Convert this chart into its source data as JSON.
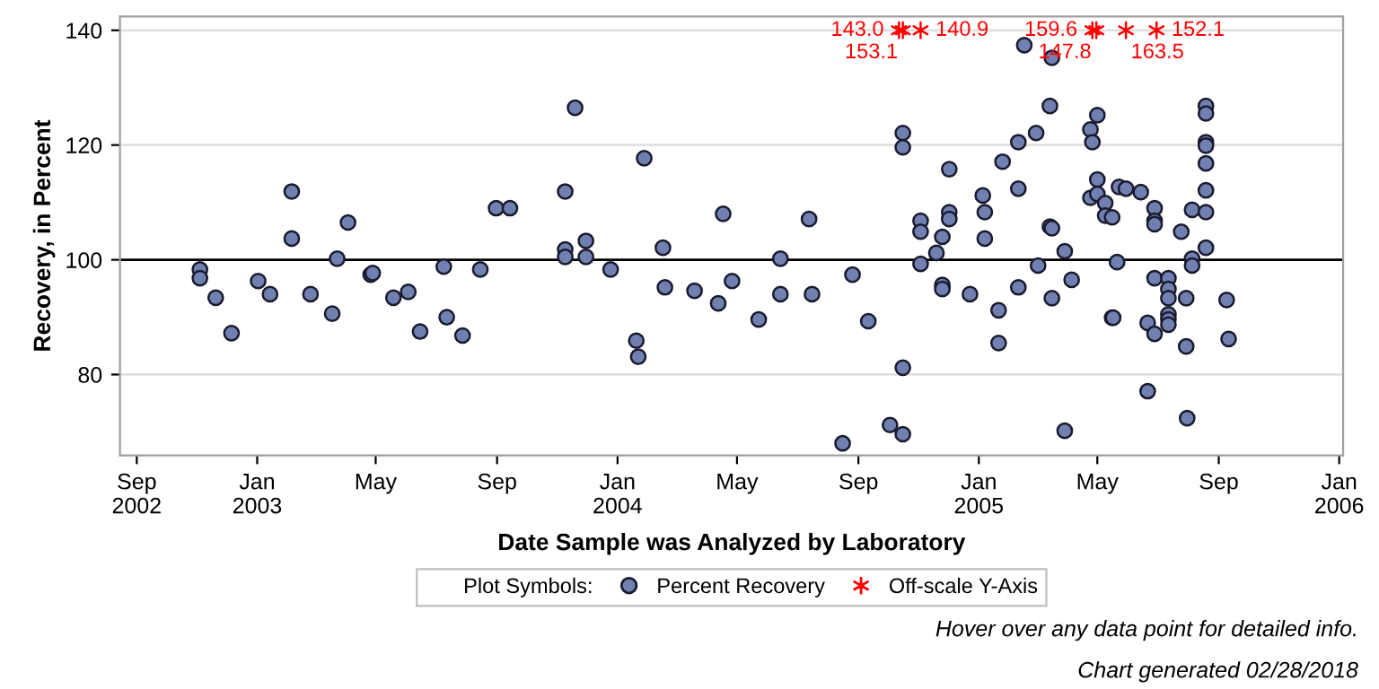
{
  "chart_data": {
    "type": "scatter",
    "xlabel": "Date Sample was Analyzed by Laboratory",
    "ylabel": "Recovery, in Percent",
    "legend_title": "Plot Symbols:",
    "xlim": [
      "2002-08-15",
      "2006-01-05"
    ],
    "ylim": [
      65.9,
      142.4
    ],
    "yticks": [
      80,
      100,
      120,
      140
    ],
    "xticks": [
      {
        "value": "2002-09-01",
        "label": "Sep\n2002"
      },
      {
        "value": "2003-01-01",
        "label": "Jan\n2003"
      },
      {
        "value": "2003-05-01",
        "label": "May"
      },
      {
        "value": "2003-09-01",
        "label": "Sep"
      },
      {
        "value": "2004-01-01",
        "label": "Jan\n2004"
      },
      {
        "value": "2004-05-01",
        "label": "May"
      },
      {
        "value": "2004-09-01",
        "label": "Sep"
      },
      {
        "value": "2005-01-01",
        "label": "Jan\n2005"
      },
      {
        "value": "2005-05-01",
        "label": "May"
      },
      {
        "value": "2005-09-01",
        "label": "Sep"
      },
      {
        "value": "2006-01-01",
        "label": "Jan\n2006"
      }
    ],
    "grid": "y",
    "legend": "bottom",
    "ref_lines": [
      {
        "axis": "y",
        "value": 100,
        "label": null,
        "color": "#000000"
      }
    ],
    "series": [
      {
        "name": "Percent Recovery",
        "color": "#7080b0",
        "marker": "circle",
        "x": [
          "2002-11-04",
          "2002-11-04",
          "2002-11-20",
          "2002-12-06",
          "2003-01-02",
          "2003-01-14",
          "2003-02-05",
          "2003-02-05",
          "2003-02-24",
          "2003-03-18",
          "2003-03-23",
          "2003-04-03",
          "2003-04-26",
          "2003-04-28",
          "2003-05-19",
          "2003-06-03",
          "2003-06-15",
          "2003-07-09",
          "2003-07-12",
          "2003-07-28",
          "2003-08-15",
          "2003-08-31",
          "2003-09-14",
          "2003-11-09",
          "2003-11-09",
          "2003-11-09",
          "2003-11-19",
          "2003-11-30",
          "2003-11-30",
          "2003-12-25",
          "2004-01-20",
          "2004-01-22",
          "2004-01-28",
          "2004-02-16",
          "2004-02-18",
          "2004-03-19",
          "2004-04-12",
          "2004-04-17",
          "2004-04-26",
          "2004-05-23",
          "2004-06-14",
          "2004-06-14",
          "2004-07-13",
          "2004-07-16",
          "2004-08-16",
          "2004-08-26",
          "2004-09-11",
          "2004-10-03",
          "2004-10-16",
          "2004-10-16",
          "2004-10-16",
          "2004-10-16",
          "2004-11-03",
          "2004-11-03",
          "2004-11-03",
          "2004-11-19",
          "2004-11-25",
          "2004-11-25",
          "2004-11-25",
          "2004-12-02",
          "2004-12-02",
          "2004-12-02",
          "2004-12-23",
          "2005-01-05",
          "2005-01-07",
          "2005-01-07",
          "2005-01-21",
          "2005-01-21",
          "2005-01-25",
          "2005-02-10",
          "2005-02-10",
          "2005-02-10",
          "2005-02-16",
          "2005-02-28",
          "2005-03-02",
          "2005-03-14",
          "2005-03-16",
          "2005-03-14",
          "2005-03-16",
          "2005-03-16",
          "2005-03-29",
          "2005-03-29",
          "2005-04-05",
          "2005-04-24",
          "2005-04-26",
          "2005-04-24",
          "2005-05-01",
          "2005-05-01",
          "2005-05-01",
          "2005-05-09",
          "2005-05-09",
          "2005-05-16",
          "2005-05-16",
          "2005-05-17",
          "2005-05-21",
          "2005-05-23",
          "2005-05-30",
          "2005-06-14",
          "2005-06-21",
          "2005-06-21",
          "2005-06-28",
          "2005-06-28",
          "2005-06-28",
          "2005-06-28",
          "2005-06-28",
          "2005-07-12",
          "2005-07-12",
          "2005-07-12",
          "2005-07-12",
          "2005-07-12",
          "2005-07-12",
          "2005-07-25",
          "2005-07-30",
          "2005-07-30",
          "2005-07-31",
          "2005-08-05",
          "2005-08-05",
          "2005-08-05",
          "2005-08-19",
          "2005-08-19",
          "2005-08-19",
          "2005-08-19",
          "2005-08-19",
          "2005-08-19",
          "2005-08-19",
          "2005-08-19",
          "2005-09-09",
          "2005-09-11"
        ],
        "values": [
          98.3,
          96.8,
          93.4,
          87.2,
          96.3,
          94.0,
          111.9,
          103.7,
          94.0,
          90.6,
          100.2,
          106.5,
          97.4,
          97.7,
          93.4,
          94.4,
          87.5,
          98.8,
          90.0,
          86.8,
          98.3,
          109.0,
          109.0,
          111.9,
          101.8,
          100.5,
          126.5,
          103.3,
          100.5,
          98.3,
          85.9,
          83.1,
          117.7,
          102.1,
          95.2,
          94.6,
          92.4,
          108.0,
          96.3,
          89.6,
          100.2,
          94.0,
          107.1,
          94.0,
          68.0,
          97.4,
          89.3,
          71.2,
          122.1,
          119.6,
          81.2,
          69.6,
          106.8,
          104.9,
          99.3,
          101.2,
          104.0,
          95.6,
          94.9,
          115.8,
          108.3,
          107.1,
          94.0,
          111.2,
          108.3,
          103.7,
          91.2,
          85.5,
          117.1,
          120.5,
          112.4,
          95.2,
          137.4,
          122.1,
          99.0,
          126.8,
          135.2,
          105.8,
          105.5,
          93.3,
          101.5,
          70.2,
          96.5,
          122.7,
          120.5,
          110.8,
          125.2,
          114.0,
          111.5,
          109.9,
          107.7,
          107.4,
          89.9,
          89.9,
          99.6,
          112.7,
          112.4,
          111.8,
          89.0,
          77.1,
          109.0,
          106.8,
          106.2,
          96.8,
          87.1,
          96.8,
          94.9,
          93.3,
          90.5,
          89.6,
          88.7,
          104.9,
          93.3,
          84.9,
          72.4,
          108.7,
          100.2,
          99.0,
          126.8,
          125.5,
          120.5,
          119.9,
          116.8,
          112.1,
          108.3,
          102.1,
          93.0,
          86.2
        ]
      },
      {
        "name": "Off-scale Y-Axis",
        "color": "#ff0000",
        "marker": "cross",
        "x": [
          "2004-10-12",
          "2004-10-16",
          "2004-11-03",
          "2005-04-26",
          "2005-04-30",
          "2005-05-30",
          "2005-06-30"
        ],
        "values": [
          140,
          140,
          140,
          140,
          140,
          140,
          140
        ]
      }
    ],
    "annotations": [
      {
        "text": "143.0",
        "x": "2004-10-12",
        "y": 140
      },
      {
        "text": "153.1",
        "x": "2004-10-16",
        "y": 140
      },
      {
        "text": "140.9",
        "x": "2004-11-03",
        "y": 140
      },
      {
        "text": "159.6",
        "x": "2005-04-26",
        "y": 140
      },
      {
        "text": "147.8",
        "x": "2005-04-30",
        "y": 140
      },
      {
        "text": "163.5",
        "x": "2005-05-30",
        "y": 140
      },
      {
        "text": "152.1",
        "x": "2005-06-30",
        "y": 140
      },
      "Hover over any data point for detailed info.",
      "Chart generated 02/28/2018"
    ]
  }
}
